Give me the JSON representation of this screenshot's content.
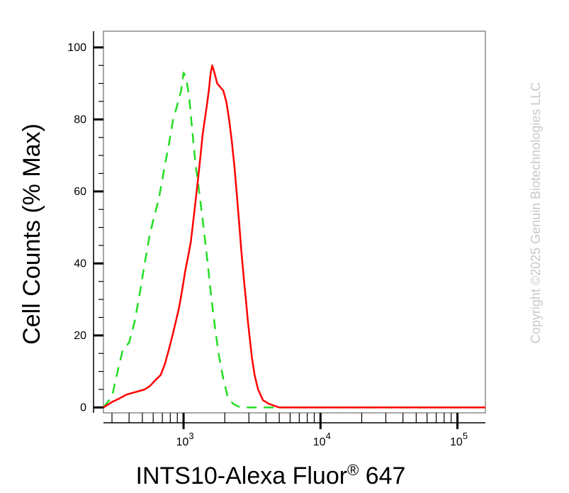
{
  "chart_data": {
    "type": "line",
    "title": "",
    "xlabel": "INTS10-Alexa Fluor",
    "xlabel_superscript": "®",
    "xlabel_suffix": " 647",
    "ylabel": "Cell Counts (% Max)",
    "x_scale": "log",
    "xlim": [
      260,
      160000
    ],
    "ylim": [
      -1.5,
      104.5
    ],
    "x_ticks": [
      {
        "value": 1000,
        "base": "10",
        "exp": "3"
      },
      {
        "value": 10000,
        "base": "10",
        "exp": "4"
      },
      {
        "value": 100000,
        "base": "10",
        "exp": "5"
      }
    ],
    "y_ticks": [
      0,
      20,
      40,
      60,
      80,
      100
    ],
    "grid": false,
    "series": [
      {
        "color": "#22dd22",
        "dash": "dashed",
        "points": [
          [
            260,
            0
          ],
          [
            300,
            3
          ],
          [
            330,
            10
          ],
          [
            360,
            16
          ],
          [
            400,
            18
          ],
          [
            440,
            24
          ],
          [
            480,
            32
          ],
          [
            520,
            40
          ],
          [
            560,
            47
          ],
          [
            600,
            52
          ],
          [
            660,
            58
          ],
          [
            720,
            66
          ],
          [
            780,
            73
          ],
          [
            840,
            80
          ],
          [
            900,
            84
          ],
          [
            960,
            88
          ],
          [
            1000,
            93
          ],
          [
            1030,
            92
          ],
          [
            1060,
            90
          ],
          [
            1100,
            86
          ],
          [
            1150,
            78
          ],
          [
            1220,
            68
          ],
          [
            1300,
            60
          ],
          [
            1400,
            50
          ],
          [
            1500,
            40
          ],
          [
            1600,
            30
          ],
          [
            1700,
            22
          ],
          [
            1800,
            15
          ],
          [
            1950,
            8
          ],
          [
            2100,
            3
          ],
          [
            2300,
            1
          ],
          [
            2600,
            0
          ],
          [
            3000,
            0
          ],
          [
            5000,
            0
          ],
          [
            10000,
            0
          ],
          [
            30000,
            0
          ],
          [
            100000,
            0
          ],
          [
            160000,
            0
          ]
        ]
      },
      {
        "color": "#ff0000",
        "dash": "solid",
        "points": [
          [
            260,
            0
          ],
          [
            300,
            1.5
          ],
          [
            340,
            2.5
          ],
          [
            380,
            3.5
          ],
          [
            420,
            4
          ],
          [
            470,
            4.5
          ],
          [
            520,
            5
          ],
          [
            570,
            6
          ],
          [
            620,
            7.5
          ],
          [
            680,
            9
          ],
          [
            730,
            12
          ],
          [
            780,
            16
          ],
          [
            830,
            20
          ],
          [
            880,
            24
          ],
          [
            930,
            28
          ],
          [
            980,
            33
          ],
          [
            1030,
            38
          ],
          [
            1080,
            42
          ],
          [
            1130,
            46
          ],
          [
            1180,
            52
          ],
          [
            1230,
            58
          ],
          [
            1280,
            64
          ],
          [
            1330,
            70
          ],
          [
            1380,
            76
          ],
          [
            1430,
            80
          ],
          [
            1480,
            84
          ],
          [
            1530,
            88
          ],
          [
            1580,
            93
          ],
          [
            1620,
            95
          ],
          [
            1680,
            93
          ],
          [
            1760,
            90
          ],
          [
            1850,
            89
          ],
          [
            1950,
            88
          ],
          [
            2050,
            85
          ],
          [
            2150,
            80
          ],
          [
            2250,
            74
          ],
          [
            2350,
            67
          ],
          [
            2450,
            59
          ],
          [
            2550,
            51
          ],
          [
            2650,
            43
          ],
          [
            2750,
            36
          ],
          [
            2850,
            30
          ],
          [
            2950,
            24
          ],
          [
            3050,
            19
          ],
          [
            3150,
            14
          ],
          [
            3300,
            9
          ],
          [
            3500,
            5
          ],
          [
            3800,
            2
          ],
          [
            4200,
            1
          ],
          [
            5000,
            0
          ],
          [
            10000,
            0
          ],
          [
            30000,
            0
          ],
          [
            100000,
            0
          ],
          [
            160000,
            0
          ]
        ]
      }
    ]
  },
  "copyright": "Copyright ©2025 Genuin Biotechnologies LLC"
}
